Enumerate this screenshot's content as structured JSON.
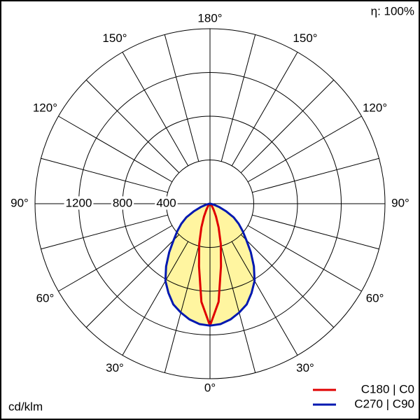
{
  "chart_data": {
    "type": "polar",
    "efficiency_label": "η: 100%",
    "unit_label": "cd/klm",
    "rlim": [
      0,
      1600
    ],
    "rticks": [
      400,
      800,
      1200,
      1600
    ],
    "rtick_labels": [
      "400",
      "800",
      "1200"
    ],
    "angle_ticks": [
      {
        "value": 0,
        "label": "0°"
      },
      {
        "value": 30,
        "label": "30°"
      },
      {
        "value": 60,
        "label": "60°"
      },
      {
        "value": 90,
        "label": "90°"
      },
      {
        "value": 120,
        "label": "120°"
      },
      {
        "value": 150,
        "label": "150°"
      },
      {
        "value": 180,
        "label": "180°"
      }
    ],
    "angles": [
      0,
      5,
      10,
      15,
      20,
      25,
      30,
      35,
      40,
      45,
      50,
      55,
      60,
      65,
      70,
      75,
      80,
      85,
      90
    ],
    "series": [
      {
        "name": "C180 | C0",
        "color": "#e00000",
        "values": [
          1115,
          900,
          580,
          380,
          230,
          130,
          70,
          40,
          25,
          15,
          10,
          5,
          3,
          2,
          1,
          0,
          0,
          0,
          0
        ]
      },
      {
        "name": "C270 | C90",
        "color": "#0018b0",
        "fill": "#fff5a0",
        "values": [
          1115,
          1105,
          1075,
          1030,
          980,
          900,
          815,
          700,
          580,
          470,
          390,
          320,
          250,
          160,
          90,
          40,
          15,
          5,
          0
        ]
      }
    ]
  }
}
